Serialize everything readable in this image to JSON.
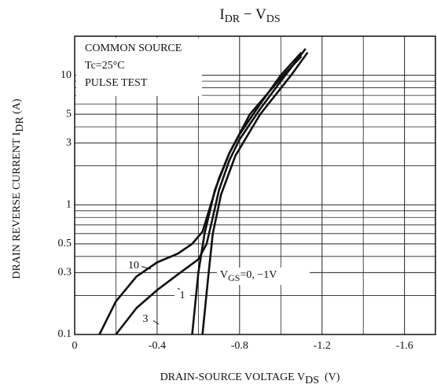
{
  "chart_data": {
    "type": "line",
    "title_parts": [
      "I",
      "DR",
      " − V",
      "DS"
    ],
    "x_label_parts": [
      "DRAIN-SOURCE VOLTAGE  V",
      "DS",
      "  (V)"
    ],
    "y_label_parts": [
      "DRAIN REVERSE CURRENT  I",
      "DR",
      "  (A)"
    ],
    "conditions": [
      "COMMON SOURCE",
      "Tc=25°C",
      "PULSE TEST"
    ],
    "vgs_label_parts": [
      "V",
      "GS",
      "=0,  −1V"
    ],
    "xlim": [
      0,
      -1.75
    ],
    "ylim": [
      0.1,
      20
    ],
    "y_log": true,
    "xticks": [
      0,
      -0.4,
      -0.8,
      -1.2,
      -1.6
    ],
    "yticks": [
      0.1,
      0.3,
      0.5,
      1,
      3,
      5,
      10
    ],
    "x_minor_grid": [
      -0.2,
      -0.6,
      -1.0,
      -1.4
    ],
    "y_minor_grid": [
      0.2,
      0.4,
      0.6,
      0.7,
      0.8,
      0.9,
      2,
      4,
      6,
      7,
      8,
      9
    ],
    "grid": true,
    "color": "#111111",
    "series": [
      {
        "name": "10",
        "x": [
          -0.12,
          -0.2,
          -0.3,
          -0.4,
          -0.5,
          -0.57,
          -0.62,
          -0.66,
          -0.7,
          -0.75,
          -0.8,
          -0.9,
          -1.0,
          -1.1
        ],
        "values": [
          0.1,
          0.18,
          0.28,
          0.36,
          0.42,
          0.5,
          0.62,
          1.0,
          1.6,
          2.5,
          3.5,
          6,
          10,
          15
        ]
      },
      {
        "name": "1",
        "x": [
          -0.2,
          -0.3,
          -0.4,
          -0.5,
          -0.6,
          -0.64,
          -0.67,
          -0.7,
          -0.75,
          -0.8,
          -0.9,
          -1.0,
          -1.12
        ],
        "values": [
          0.1,
          0.16,
          0.22,
          0.29,
          0.38,
          0.5,
          0.8,
          1.3,
          2.2,
          3.2,
          5.5,
          9,
          16
        ]
      },
      {
        "name": "3",
        "x": [
          -0.57,
          -0.6,
          -0.63,
          -0.68,
          -0.75,
          -0.85,
          -1.0,
          -1.1
        ],
        "values": [
          0.1,
          0.3,
          0.6,
          1.3,
          2.5,
          5,
          9.5,
          14
        ]
      },
      {
        "x": [
          -0.62,
          -0.65,
          -0.67,
          -0.71,
          -0.78,
          -0.9,
          -1.05,
          -1.13
        ],
        "values": [
          0.1,
          0.3,
          0.6,
          1.2,
          2.4,
          5,
          10,
          15
        ]
      }
    ]
  }
}
